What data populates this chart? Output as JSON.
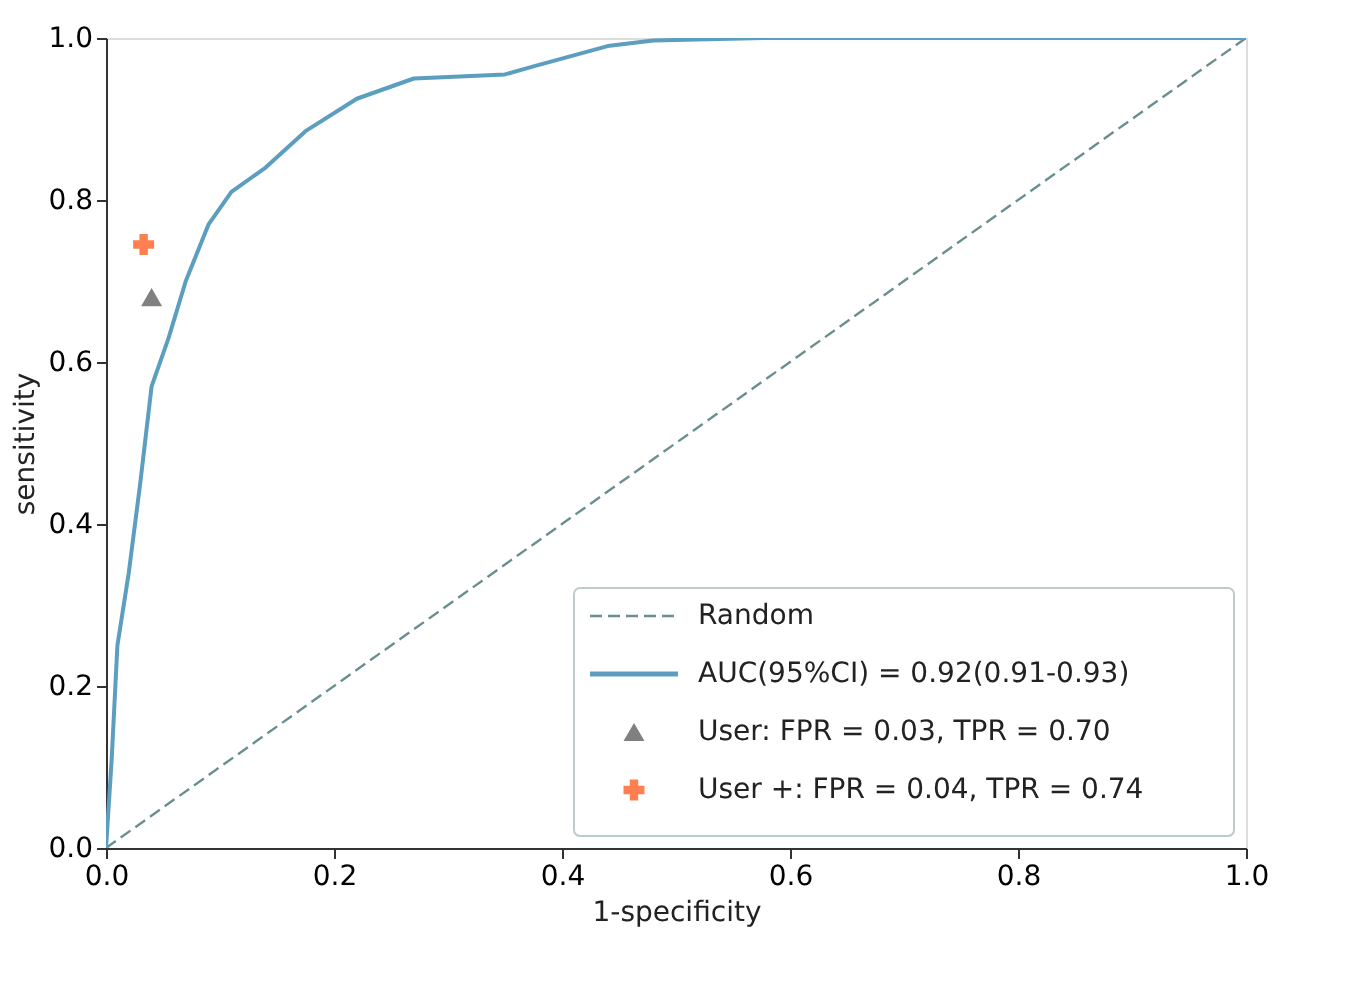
{
  "chart_data": {
    "type": "line",
    "xlabel": "1-specificity",
    "ylabel": "sensitivity",
    "xlim": [
      0,
      1
    ],
    "ylim": [
      0,
      1
    ],
    "xticks": [
      {
        "value": 0,
        "label": "0.0"
      },
      0.2,
      0.4,
      0.6,
      0.8,
      {
        "value": 1,
        "label": "1.0"
      }
    ],
    "yticks": [
      {
        "value": 0,
        "label": "0.0"
      },
      0.2,
      0.4,
      0.6,
      0.8,
      {
        "value": 1,
        "label": "1.0"
      }
    ],
    "grid": false,
    "legend": "bottom right",
    "series": [
      {
        "name": "Random",
        "line_style": "dashed",
        "color": "#6a8f8f",
        "x": [
          0,
          1
        ],
        "values": [
          0,
          1
        ]
      },
      {
        "name": "AUC(95%CI) = 0.92(0.91-0.93)",
        "line_style": "solid",
        "color": "#5b9ebf",
        "x": [
          0,
          0.005,
          0.01,
          0.02,
          0.03,
          0.04,
          0.055,
          0.07,
          0.09,
          0.11,
          0.14,
          0.175,
          0.22,
          0.27,
          0.35,
          0.375,
          0.44,
          0.48,
          0.58,
          1
        ],
        "values": [
          0,
          0.11,
          0.25,
          0.34,
          0.45,
          0.57,
          0.63,
          0.7,
          0.77,
          0.81,
          0.84,
          0.885,
          0.925,
          0.95,
          0.955,
          0.965,
          0.99,
          0.997,
          1.0,
          1.0
        ]
      },
      {
        "name": "User: FPR = 0.03, TPR = 0.70",
        "type": "scatter",
        "marker": "triangle",
        "color": "#808080",
        "x": [
          0.04
        ],
        "values": [
          0.68
        ]
      },
      {
        "name": "User +: FPR = 0.04, TPR = 0.74",
        "type": "scatter",
        "marker": "cross",
        "color": "#ff7f50",
        "x": [
          0.033
        ],
        "values": [
          0.745
        ]
      }
    ]
  }
}
